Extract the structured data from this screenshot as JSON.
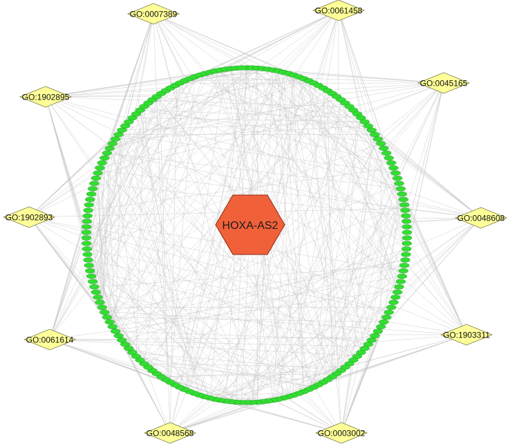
{
  "center_node": {
    "label": "HOXA-AS2",
    "fill": "#f0613a",
    "stroke": "#8a2a12"
  },
  "go_terms": [
    {
      "id": "go-0007389",
      "label": "GO:0007389"
    },
    {
      "id": "go-0061458",
      "label": "GO:0061458"
    },
    {
      "id": "go-1902895",
      "label": "GO:1902895"
    },
    {
      "id": "go-0045165",
      "label": "GO:0045165"
    },
    {
      "id": "go-1902893",
      "label": "GO:1902893"
    },
    {
      "id": "go-0048608",
      "label": "GO:0048608"
    },
    {
      "id": "go-0061614",
      "label": "GO:0061614"
    },
    {
      "id": "go-1903311",
      "label": "GO:1903311"
    },
    {
      "id": "go-0048568",
      "label": "GO:0048568"
    },
    {
      "id": "go-0003002",
      "label": "GO:0003002"
    }
  ],
  "gene_ring": {
    "node_count": 190,
    "fill": "#33dd33",
    "stroke": "#1a8f1a"
  },
  "colors": {
    "go_fill": "#ffff99",
    "go_stroke": "#777744",
    "edge": "#c8c8c8"
  }
}
